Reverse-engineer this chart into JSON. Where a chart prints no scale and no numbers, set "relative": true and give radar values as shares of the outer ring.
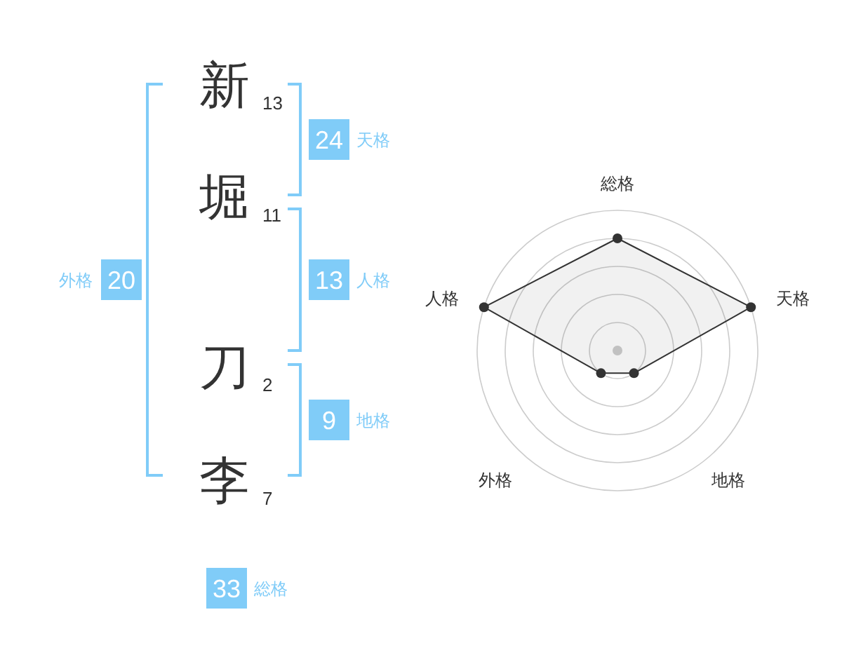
{
  "chart_data": [
    {
      "type": "other",
      "categories": [
        "新",
        "堀",
        "刀",
        "李"
      ],
      "values": [
        13,
        11,
        2,
        7
      ],
      "data_labels": true
    },
    {
      "type": "other",
      "categories": [
        "天格",
        "人格",
        "地格",
        "外格",
        "総格"
      ],
      "data_labels": true,
      "series": [
        {
          "color": "#80ccf8",
          "values": [
            24,
            13,
            9,
            20,
            33
          ]
        }
      ]
    },
    {
      "type": "radar",
      "categories": [
        "総格",
        "天格",
        "地格",
        "外格",
        "人格"
      ],
      "relative": true,
      "grid": true,
      "marker": "circle",
      "series": [
        {
          "color": "#333333",
          "values": [
            0.8,
            1,
            0.2,
            0.2,
            1
          ]
        }
      ]
    }
  ]
}
